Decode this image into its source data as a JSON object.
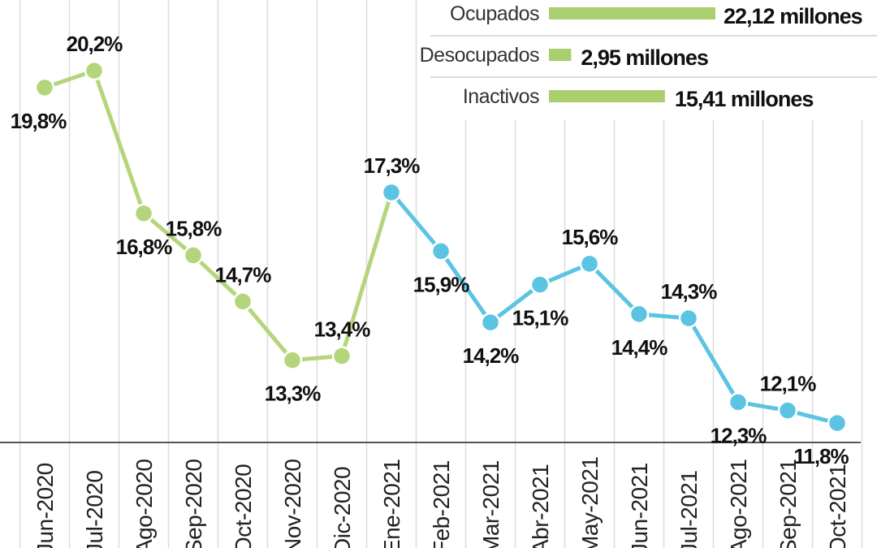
{
  "chart_data": {
    "type": "line",
    "categories": [
      "jun-2020",
      "jul-2020",
      "ago-2020",
      "sep-2020",
      "oct-2020",
      "nov-2020",
      "dic-2020",
      "ene-2021",
      "feb-2021",
      "mar-2021",
      "abr-2021",
      "may-2021",
      "jun-2021",
      "jul-2021",
      "ago-2021",
      "sep-2021",
      "oct-2021"
    ],
    "category_labels": [
      "Jun-2020",
      "Jul-2020",
      "Ago-2020",
      "Sep-2020",
      "Oct-2020",
      "Nov-2020",
      "Dic-2020",
      "Ene-2021",
      "Feb-2021",
      "Mar-2021",
      "Abr-2021",
      "May-2021",
      "Jun-2021",
      "Jul-2021",
      "Ago-2021",
      "Sep-2021",
      "Oct-2021"
    ],
    "series": [
      {
        "values": [
          19.8,
          20.2,
          16.8,
          15.8,
          14.7,
          13.3,
          13.4,
          17.3,
          15.9,
          14.2,
          15.1,
          15.6,
          14.4,
          14.3,
          12.3,
          12.1,
          11.8
        ],
        "labels": [
          "19,8%",
          "20,2%",
          "16,8%",
          "15,8%",
          "14,7%",
          "13,3%",
          "13,4%",
          "17,3%",
          "15,9%",
          "14,2%",
          "15,1%",
          "15,6%",
          "14,4%",
          "14,3%",
          "12,3%",
          "12,1%",
          "11,8%"
        ],
        "color_2020": "#b5d57c",
        "color_2021": "#5bc4e2"
      }
    ],
    "color_change_index": 7,
    "grid": "vertical",
    "ylim": [
      9.5,
      21.5
    ],
    "title": "",
    "xlabel": "",
    "ylabel": ""
  },
  "legend": {
    "items": [
      {
        "name": "Ocupados",
        "value": 22.12,
        "label": "22,12 millones"
      },
      {
        "name": "Desocupados",
        "value": 2.95,
        "label": "2,95 millones"
      },
      {
        "name": "Inactivos",
        "value": 15.41,
        "label": "15,41 millones"
      }
    ],
    "bar_color": "#a9cf6e"
  }
}
